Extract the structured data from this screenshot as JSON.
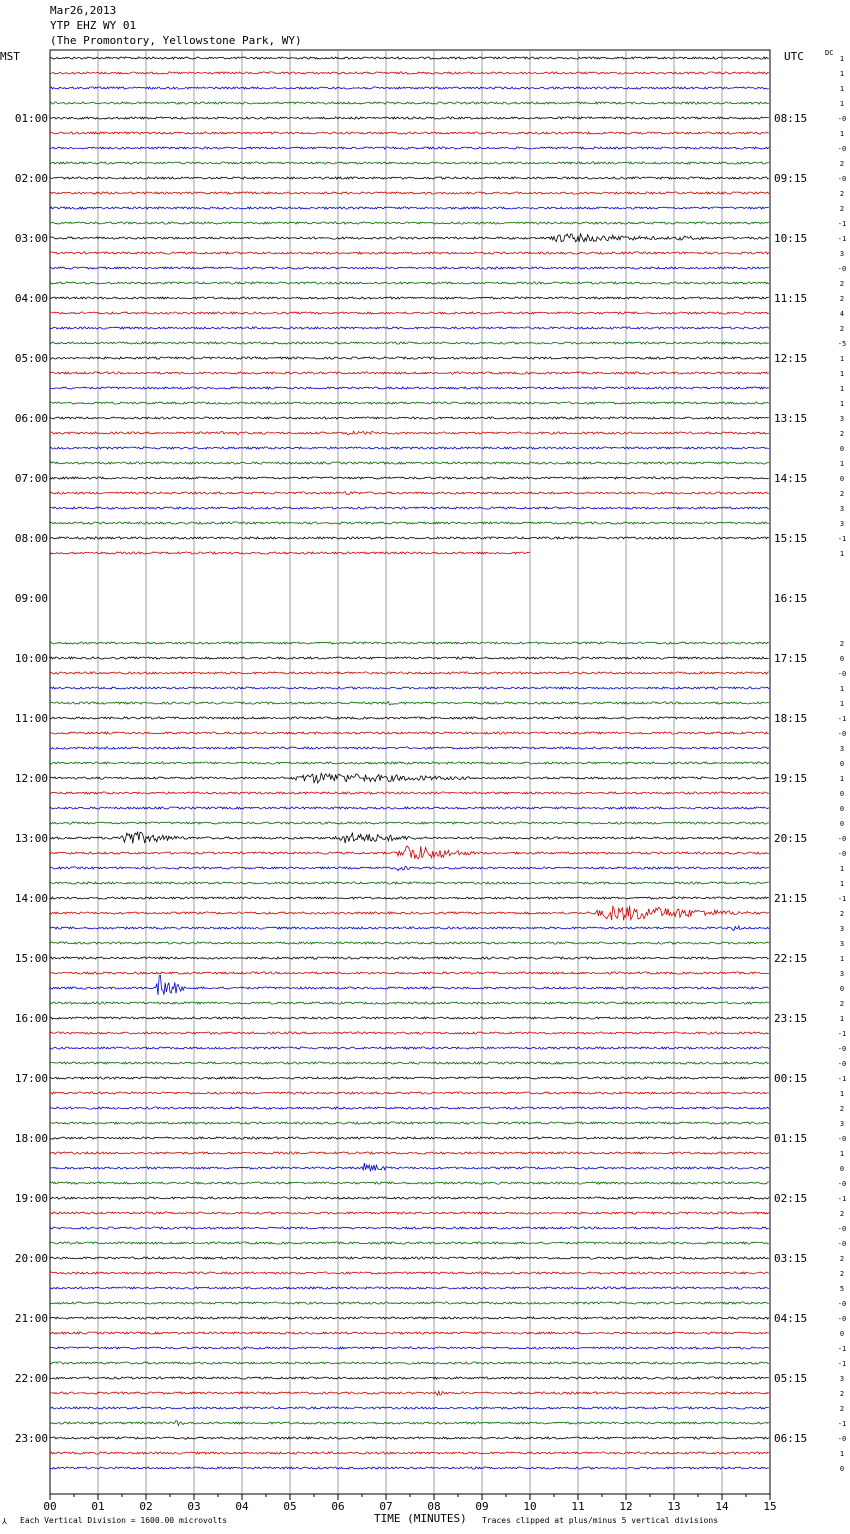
{
  "header": {
    "date": "Mar26,2013",
    "station": "YTP EHZ WY 01",
    "location": "(The Promontory, Yellowstone Park, WY)"
  },
  "left_zone": "MST",
  "right_zone": "UTC",
  "dc_label": "DC",
  "footer": {
    "scale_note": "Each Vertical Division = 1600.00 microvolts",
    "xlabel": "TIME (MINUTES)",
    "clip_note": "Traces clipped at plus/minus 5 vertical divisions"
  },
  "chart_data": {
    "type": "line",
    "title": "YTP EHZ WY 01",
    "xlabel": "TIME (MINUTES)",
    "xlim": [
      0,
      15
    ],
    "x_ticks": [
      "00",
      "01",
      "02",
      "03",
      "04",
      "05",
      "06",
      "07",
      "08",
      "09",
      "10",
      "11",
      "12",
      "13",
      "14",
      "15"
    ],
    "minutes_per_line": 15,
    "trace_colors": [
      "#000000",
      "#cc0000",
      "#0000cc",
      "#006600"
    ],
    "hours_left": [
      "01:00",
      "02:00",
      "03:00",
      "04:00",
      "05:00",
      "06:00",
      "07:00",
      "08:00",
      "09:00",
      "10:00",
      "11:00",
      "12:00",
      "13:00",
      "14:00",
      "15:00",
      "16:00",
      "17:00",
      "18:00",
      "19:00",
      "20:00",
      "21:00",
      "22:00",
      "23:00"
    ],
    "hours_right": [
      "08:15",
      "09:15",
      "10:15",
      "11:15",
      "12:15",
      "13:15",
      "14:15",
      "15:15",
      "16:15",
      "17:15",
      "18:15",
      "19:15",
      "20:15",
      "21:15",
      "22:15",
      "23:15",
      "00:15",
      "01:15",
      "02:15",
      "03:15",
      "04:15",
      "05:15",
      "06:15"
    ],
    "missing_segment": {
      "from_trace": 33,
      "from_minute": 10,
      "to_trace": 39
    },
    "dc_offsets": [
      "1",
      "1",
      "1",
      "1",
      "-0",
      "1",
      "-0",
      "2",
      "-0",
      "2",
      "2",
      "-1",
      "-1",
      "3",
      "-0",
      "2",
      "2",
      "4",
      "2",
      "-5",
      "1",
      "1",
      "1",
      "1",
      "3",
      "2",
      "0",
      "1",
      "0",
      "2",
      "3",
      "3",
      "-1",
      "1",
      "",
      "",
      "",
      "",
      "",
      "2",
      "0",
      "-0",
      "1",
      "1",
      "-1",
      "-0",
      "3",
      "0",
      "1",
      "0",
      "0",
      "0",
      "-0",
      "-0",
      "1",
      "1",
      "-1",
      "2",
      "3",
      "3",
      "1",
      "3",
      "0",
      "2",
      "1",
      "-1",
      "-0",
      "-0",
      "-1",
      "1",
      "2",
      "3",
      "-0",
      "1",
      "0",
      "-0",
      "-1",
      "2",
      "-0",
      "-0",
      "2",
      "2",
      "5",
      "-0",
      "-0",
      "0",
      "-1",
      "-1",
      "3",
      "2",
      "2",
      "-1",
      "-0",
      "1",
      "0"
    ],
    "events": [
      {
        "trace": 12,
        "start_min": 10.3,
        "end_min": 13.3,
        "amp": 4.5
      },
      {
        "trace": 12,
        "start_min": 13.0,
        "end_min": 14.0,
        "amp": 1.5
      },
      {
        "trace": 25,
        "start_min": 3.5,
        "end_min": 4.2,
        "amp": 1.5
      },
      {
        "trace": 25,
        "start_min": 6.0,
        "end_min": 7.5,
        "amp": 1.2
      },
      {
        "trace": 29,
        "start_min": 6.1,
        "end_min": 6.6,
        "amp": 1.3
      },
      {
        "trace": 43,
        "start_min": 7.0,
        "end_min": 7.5,
        "amp": 1.2
      },
      {
        "trace": 48,
        "start_min": 5.0,
        "end_min": 9.3,
        "amp": 5.5
      },
      {
        "trace": 52,
        "start_min": 1.35,
        "end_min": 3.0,
        "amp": 8.0
      },
      {
        "trace": 52,
        "start_min": 5.9,
        "end_min": 8.0,
        "amp": 6.0
      },
      {
        "trace": 53,
        "start_min": 7.2,
        "end_min": 9.0,
        "amp": 10.0
      },
      {
        "trace": 54,
        "start_min": 7.2,
        "end_min": 7.6,
        "amp": 2.5
      },
      {
        "trace": 57,
        "start_min": 11.3,
        "end_min": 15.0,
        "amp": 9.0
      },
      {
        "trace": 58,
        "start_min": 14.2,
        "end_min": 14.5,
        "amp": 3.0
      },
      {
        "trace": 62,
        "start_min": 2.2,
        "end_min": 2.9,
        "amp": 15.0
      },
      {
        "trace": 74,
        "start_min": 6.45,
        "end_min": 7.2,
        "amp": 5.0
      },
      {
        "trace": 89,
        "start_min": 8.0,
        "end_min": 8.3,
        "amp": 3.0
      },
      {
        "trace": 91,
        "start_min": 2.6,
        "end_min": 2.85,
        "amp": 3.0
      }
    ]
  }
}
